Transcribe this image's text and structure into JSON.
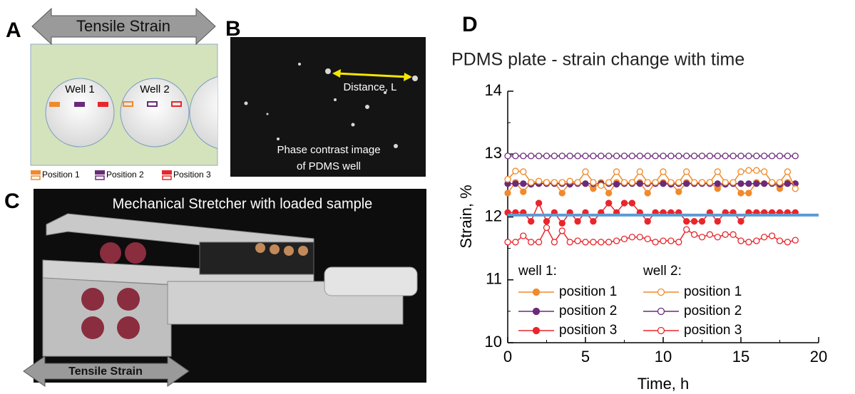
{
  "panel_a": {
    "label": "A",
    "arrow_text": "Tensile Strain",
    "wells": [
      "Well 1",
      "Well 2"
    ],
    "legend": [
      "Position 1",
      "Position 2",
      "Position 3"
    ]
  },
  "panel_b": {
    "label": "B",
    "annotation": "Distance, L",
    "caption": [
      "Phase contrast image",
      "of PDMS well"
    ]
  },
  "panel_c": {
    "label": "C",
    "title": "Mechanical Stretcher with loaded sample",
    "arrow_text": "Tensile Strain"
  },
  "chart_data": {
    "type": "line",
    "label": "D",
    "title": "PDMS plate - strain change with time",
    "xlabel": "Time, h",
    "ylabel": "Strain, %",
    "xlim": [
      0,
      20
    ],
    "xticks": [
      0,
      5,
      10,
      15,
      20
    ],
    "xminorticks": [
      2.5,
      7.5,
      12.5,
      17.5
    ],
    "ylim": [
      10,
      14
    ],
    "yticks": [
      10,
      11,
      12,
      13,
      14
    ],
    "yminorticks": [
      10.5,
      11.5,
      12.5,
      13.5
    ],
    "legend_titles": [
      "well 1:",
      "well 2:"
    ],
    "x": [
      0,
      0.5,
      1,
      1.5,
      2,
      2.5,
      3,
      3.5,
      4,
      4.5,
      5,
      5.5,
      6,
      6.5,
      7,
      7.5,
      8,
      8.5,
      9,
      9.5,
      10,
      10.5,
      11,
      11.5,
      12,
      12.5,
      13,
      13.5,
      14,
      14.5,
      15,
      15.5,
      16,
      16.5,
      17,
      17.5,
      18,
      18.5
    ],
    "series": [
      {
        "name": "position 1",
        "color": "#f08a2c",
        "marker": "filled",
        "values": [
          12.38,
          12.55,
          12.4,
          12.55,
          12.53,
          12.55,
          12.55,
          12.38,
          12.55,
          12.55,
          12.53,
          12.45,
          12.55,
          12.38,
          12.55,
          12.53,
          12.55,
          12.55,
          12.38,
          12.55,
          12.55,
          12.53,
          12.4,
          12.55,
          12.53,
          12.55,
          12.55,
          12.45,
          12.55,
          12.53,
          12.38,
          12.38,
          12.55,
          12.53,
          12.55,
          12.45,
          12.55,
          12.53
        ]
      },
      {
        "name": "position 2",
        "color": "#6b2a7a",
        "marker": "filled",
        "values": [
          12.53,
          12.53,
          12.53,
          12.52,
          12.53,
          12.53,
          12.53,
          12.53,
          12.52,
          12.53,
          12.53,
          12.53,
          12.53,
          12.53,
          12.52,
          12.53,
          12.53,
          12.53,
          12.53,
          12.53,
          12.53,
          12.52,
          12.53,
          12.53,
          12.53,
          12.53,
          12.53,
          12.53,
          12.52,
          12.53,
          12.53,
          12.53,
          12.53,
          12.53,
          12.53,
          12.52,
          12.53,
          12.53
        ]
      },
      {
        "name": "position 3",
        "color": "#e8262b",
        "marker": "filled",
        "values": [
          12.07,
          12.07,
          12.07,
          11.93,
          12.22,
          11.93,
          12.07,
          11.9,
          12.07,
          11.93,
          12.07,
          11.93,
          12.07,
          12.22,
          12.07,
          12.22,
          12.22,
          12.07,
          11.93,
          12.07,
          12.07,
          12.07,
          12.07,
          11.93,
          11.93,
          11.93,
          12.07,
          11.93,
          12.07,
          12.07,
          11.93,
          12.07,
          12.07,
          12.07,
          12.07,
          12.07,
          12.07,
          12.07
        ]
      },
      {
        "name": "position 1",
        "color": "#f08a2c",
        "marker": "open",
        "values": [
          12.6,
          12.73,
          12.72,
          12.55,
          12.57,
          12.55,
          12.55,
          12.55,
          12.57,
          12.55,
          12.72,
          12.55,
          12.5,
          12.55,
          12.72,
          12.55,
          12.55,
          12.72,
          12.55,
          12.55,
          12.72,
          12.55,
          12.55,
          12.72,
          12.55,
          12.55,
          12.55,
          12.72,
          12.55,
          12.55,
          12.72,
          12.74,
          12.74,
          12.72,
          12.55,
          12.55,
          12.72,
          12.45
        ]
      },
      {
        "name": "position 2",
        "color": "#6b2a7a",
        "marker": "open",
        "values": [
          12.97,
          12.97,
          12.97,
          12.97,
          12.97,
          12.97,
          12.97,
          12.97,
          12.97,
          12.97,
          12.97,
          12.97,
          12.97,
          12.97,
          12.97,
          12.97,
          12.97,
          12.97,
          12.97,
          12.97,
          12.97,
          12.97,
          12.97,
          12.97,
          12.97,
          12.97,
          12.97,
          12.97,
          12.97,
          12.97,
          12.97,
          12.97,
          12.97,
          12.97,
          12.97,
          12.97,
          12.97,
          12.97
        ]
      },
      {
        "name": "position 3",
        "color": "#e8262b",
        "marker": "open",
        "values": [
          11.6,
          11.6,
          11.7,
          11.6,
          11.6,
          11.83,
          11.6,
          11.78,
          11.6,
          11.62,
          11.6,
          11.6,
          11.6,
          11.6,
          11.62,
          11.65,
          11.68,
          11.68,
          11.65,
          11.6,
          11.62,
          11.62,
          11.6,
          11.8,
          11.72,
          11.68,
          11.72,
          11.68,
          11.72,
          11.72,
          11.62,
          11.6,
          11.62,
          11.68,
          11.7,
          11.62,
          11.6,
          11.63
        ]
      }
    ],
    "reference_line": {
      "x": [
        0,
        20
      ],
      "y": [
        12.03,
        12.03
      ],
      "color": "#5b9bd5"
    }
  }
}
